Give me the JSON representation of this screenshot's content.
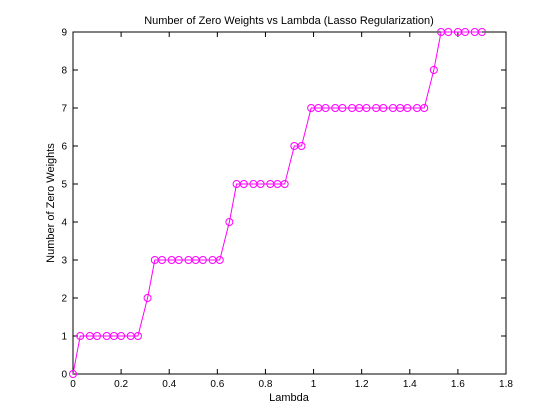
{
  "chart_data": {
    "type": "line",
    "title": "Number of Zero Weights vs Lambda (Lasso Regularization)",
    "xlabel": "Lambda",
    "ylabel": "Number of Zero Weights",
    "xlim": [
      0,
      1.8
    ],
    "ylim": [
      0,
      9
    ],
    "xticks": [
      0,
      0.2,
      0.4,
      0.6,
      0.8,
      1,
      1.2,
      1.4,
      1.6,
      1.8
    ],
    "xtick_labels": [
      "0",
      "0.2",
      "0.4",
      "0.6",
      "0.8",
      "1",
      "1.2",
      "1.4",
      "1.6",
      "1.8"
    ],
    "yticks": [
      0,
      1,
      2,
      3,
      4,
      5,
      6,
      7,
      8,
      9
    ],
    "ytick_labels": [
      "0",
      "1",
      "2",
      "3",
      "4",
      "5",
      "6",
      "7",
      "8",
      "9"
    ],
    "grid": false,
    "legend": "none",
    "series": [
      {
        "color": "#ff00ff",
        "marker": "circle",
        "x": [
          0,
          0.03,
          0.07,
          0.1,
          0.14,
          0.17,
          0.2,
          0.24,
          0.27,
          0.31,
          0.34,
          0.37,
          0.41,
          0.44,
          0.48,
          0.51,
          0.54,
          0.58,
          0.61,
          0.65,
          0.68,
          0.71,
          0.75,
          0.78,
          0.82,
          0.85,
          0.88,
          0.92,
          0.95,
          0.99,
          1.02,
          1.05,
          1.09,
          1.12,
          1.16,
          1.19,
          1.22,
          1.26,
          1.29,
          1.33,
          1.36,
          1.39,
          1.43,
          1.46,
          1.5,
          1.53,
          1.56,
          1.6,
          1.63,
          1.67,
          1.7
        ],
        "y": [
          0,
          1,
          1,
          1,
          1,
          1,
          1,
          1,
          1,
          2,
          3,
          3,
          3,
          3,
          3,
          3,
          3,
          3,
          3,
          4,
          5,
          5,
          5,
          5,
          5,
          5,
          5,
          6,
          6,
          7,
          7,
          7,
          7,
          7,
          7,
          7,
          7,
          7,
          7,
          7,
          7,
          7,
          7,
          7,
          8,
          9,
          9,
          9,
          9,
          9,
          9
        ]
      }
    ]
  }
}
